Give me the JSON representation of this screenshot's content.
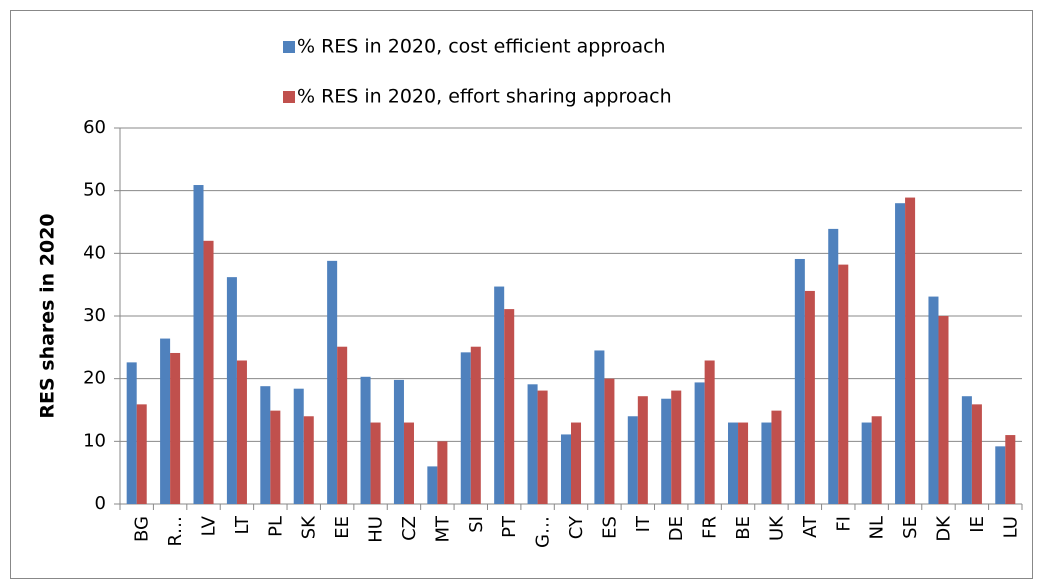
{
  "chart_data": {
    "type": "bar",
    "ylabel": "RES shares in 2020",
    "categories": [
      "BG",
      "R…",
      "LV",
      "LT",
      "PL",
      "SK",
      "EE",
      "HU",
      "CZ",
      "MT",
      "SI",
      "PT",
      "G…",
      "CY",
      "ES",
      "IT",
      "DE",
      "FR",
      "BE",
      "UK",
      "AT",
      "FI",
      "NL",
      "SE",
      "DK",
      "IE",
      "LU"
    ],
    "series": [
      {
        "name": "% RES in 2020, cost efficient approach",
        "color": "#4f81bd",
        "values": [
          22.6,
          26.4,
          50.9,
          36.2,
          18.8,
          18.4,
          38.8,
          20.3,
          19.8,
          6,
          24.2,
          34.7,
          19.1,
          11.1,
          24.5,
          14,
          16.8,
          19.4,
          13,
          13,
          39.1,
          43.9,
          13,
          48,
          33.1,
          17.2,
          9.2
        ]
      },
      {
        "name": "% RES in 2020, effort sharing approach",
        "color": "#c0504d",
        "values": [
          15.9,
          24.1,
          42,
          22.9,
          14.9,
          14,
          25.1,
          13,
          13,
          10,
          25.1,
          31.1,
          18.1,
          13,
          20,
          17.2,
          18.1,
          22.9,
          13,
          14.9,
          34,
          38.2,
          14,
          48.9,
          30,
          15.9,
          11
        ]
      }
    ],
    "ylim": [
      0,
      60
    ],
    "yticks": [
      0,
      10,
      20,
      30,
      40,
      50,
      60
    ],
    "grid": true,
    "legend": "top"
  }
}
